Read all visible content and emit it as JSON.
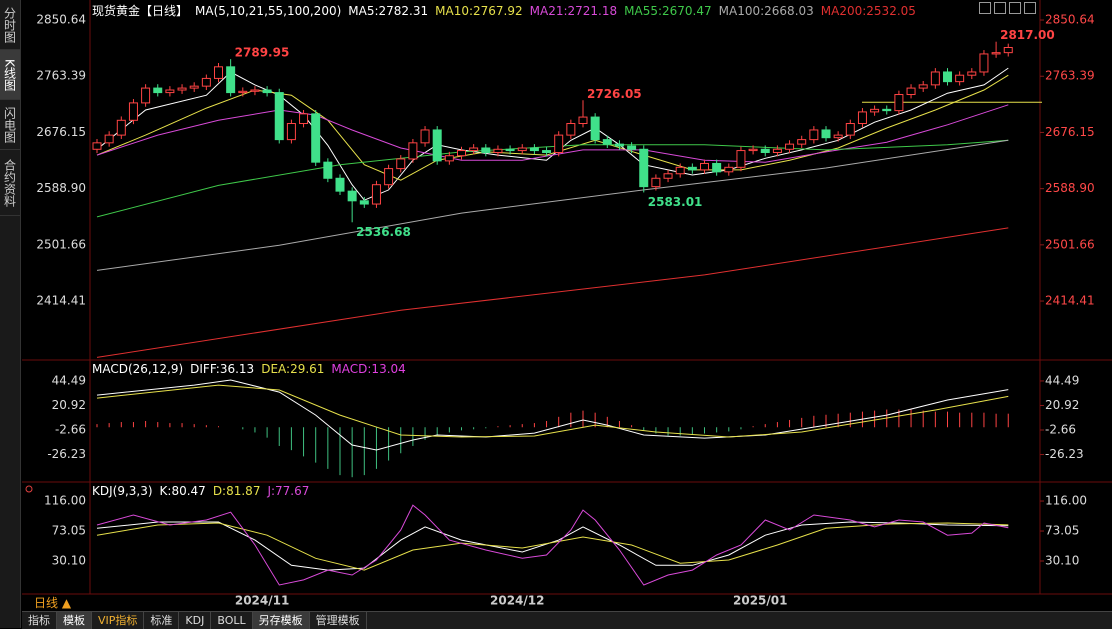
{
  "chart_data": [
    {
      "type": "candlestick",
      "title": "现货黄金【日线】",
      "indicator": "MA(5,10,21,55,100,200)",
      "up_color": "#ff4444",
      "down_color": "#40e08a",
      "categories": [
        null,
        null,
        null,
        null,
        null,
        null,
        null,
        null,
        null,
        null,
        null,
        null,
        null,
        null,
        "2024/11",
        null,
        null,
        null,
        null,
        null,
        null,
        null,
        null,
        null,
        null,
        null,
        null,
        null,
        null,
        null,
        null,
        null,
        null,
        null,
        null,
        "2024/12",
        null,
        null,
        null,
        null,
        null,
        null,
        null,
        null,
        null,
        null,
        null,
        null,
        null,
        null,
        null,
        null,
        null,
        null,
        null,
        "2025/01",
        null,
        null,
        null,
        null,
        null,
        null,
        null,
        null,
        null,
        null,
        null,
        null,
        null,
        null,
        null,
        null,
        null,
        null,
        null,
        null
      ],
      "open": [
        2650,
        2660,
        2672,
        2695,
        2722,
        2745,
        2738,
        2742,
        2745,
        2748,
        2760,
        2778,
        2738,
        2740,
        2742,
        2738,
        2665,
        2690,
        2705,
        2630,
        2605,
        2585,
        2570,
        2565,
        2595,
        2620,
        2635,
        2660,
        2680,
        2632,
        2640,
        2648,
        2652,
        2645,
        2650,
        2648,
        2652,
        2648,
        2645,
        2672,
        2690,
        2700,
        2665,
        2658,
        2655,
        2650,
        2592,
        2605,
        2612,
        2622,
        2618,
        2628,
        2615,
        2622,
        2648,
        2650,
        2645,
        2650,
        2658,
        2665,
        2680,
        2668,
        2672,
        2690,
        2708,
        2712,
        2710,
        2735,
        2745,
        2750,
        2770,
        2755,
        2765,
        2770,
        2798,
        2800
      ],
      "high": [
        2666,
        2678,
        2701,
        2728,
        2751,
        2751,
        2748,
        2751,
        2754,
        2766,
        2784,
        2789.95,
        2746,
        2748,
        2748,
        2744,
        2696,
        2711,
        2711,
        2636,
        2611,
        2591,
        2576,
        2601,
        2626,
        2641,
        2666,
        2686,
        2686,
        2646,
        2654,
        2658,
        2658,
        2656,
        2656,
        2658,
        2658,
        2654,
        2678,
        2696,
        2726.05,
        2706,
        2671,
        2664,
        2661,
        2656,
        2611,
        2618,
        2628,
        2628,
        2634,
        2634,
        2628,
        2654,
        2656,
        2656,
        2656,
        2664,
        2671,
        2686,
        2686,
        2678,
        2696,
        2714,
        2718,
        2718,
        2741,
        2751,
        2756,
        2776,
        2776,
        2771,
        2776,
        2804,
        2817,
        2814
      ],
      "low": [
        2644,
        2654,
        2666,
        2689,
        2716,
        2732,
        2732,
        2736,
        2739,
        2742,
        2754,
        2732,
        2732,
        2734,
        2732,
        2659,
        2659,
        2684,
        2624,
        2599,
        2579,
        2536.68,
        2559,
        2559,
        2589,
        2614,
        2629,
        2654,
        2626,
        2626,
        2634,
        2642,
        2639,
        2639,
        2642,
        2642,
        2642,
        2639,
        2639,
        2666,
        2684,
        2659,
        2652,
        2649,
        2644,
        2583.01,
        2586,
        2599,
        2606,
        2612,
        2612,
        2609,
        2609,
        2616,
        2642,
        2639,
        2639,
        2644,
        2652,
        2659,
        2662,
        2662,
        2666,
        2684,
        2702,
        2704,
        2704,
        2729,
        2739,
        2744,
        2749,
        2749,
        2759,
        2764,
        2792,
        2794
      ],
      "close": [
        2660,
        2672,
        2695,
        2722,
        2745,
        2738,
        2742,
        2745,
        2748,
        2760,
        2778,
        2738,
        2740,
        2742,
        2738,
        2665,
        2690,
        2705,
        2630,
        2605,
        2585,
        2570,
        2565,
        2595,
        2620,
        2635,
        2660,
        2680,
        2632,
        2640,
        2648,
        2652,
        2645,
        2650,
        2648,
        2652,
        2648,
        2645,
        2672,
        2690,
        2700,
        2665,
        2658,
        2655,
        2650,
        2592,
        2605,
        2612,
        2622,
        2618,
        2628,
        2615,
        2622,
        2648,
        2650,
        2645,
        2650,
        2658,
        2665,
        2680,
        2668,
        2672,
        2690,
        2708,
        2712,
        2710,
        2735,
        2745,
        2750,
        2770,
        2755,
        2765,
        2770,
        2798,
        2800,
        2808
      ],
      "high_labels": [
        null,
        null,
        null,
        null,
        null,
        null,
        null,
        null,
        null,
        null,
        null,
        "2789.95",
        null,
        null,
        null,
        null,
        null,
        null,
        null,
        null,
        null,
        null,
        null,
        null,
        null,
        null,
        null,
        null,
        null,
        null,
        null,
        null,
        null,
        null,
        null,
        null,
        null,
        null,
        null,
        null,
        "2726.05",
        null,
        null,
        null,
        null,
        null,
        null,
        null,
        null,
        null,
        null,
        null,
        null,
        null,
        null,
        null,
        null,
        null,
        null,
        null,
        null,
        null,
        null,
        null,
        null,
        null,
        null,
        null,
        null,
        null,
        null,
        null,
        null,
        null,
        "2817.00",
        null
      ],
      "low_labels": [
        null,
        null,
        null,
        null,
        null,
        null,
        null,
        null,
        null,
        null,
        null,
        null,
        null,
        null,
        null,
        null,
        null,
        null,
        null,
        null,
        null,
        "2536.68",
        null,
        null,
        null,
        null,
        null,
        null,
        null,
        null,
        null,
        null,
        null,
        null,
        null,
        null,
        null,
        null,
        null,
        null,
        null,
        null,
        null,
        null,
        null,
        "2583.01",
        null,
        null,
        null,
        null,
        null,
        null,
        null,
        null,
        null,
        null,
        null,
        null,
        null,
        null,
        null,
        null,
        null,
        null,
        null,
        null,
        null,
        null,
        null,
        null,
        null,
        null,
        null,
        null,
        null,
        null
      ],
      "horizontal_line": {
        "value": 2723,
        "color": "#e6e04b"
      },
      "series": [
        {
          "name": "MA5:2782.31",
          "color": "#ffffff",
          "x": [
            0,
            4,
            9,
            11,
            13,
            15,
            17,
            19,
            21,
            22,
            24,
            26,
            28,
            30,
            33,
            37,
            39,
            41,
            43,
            45,
            47,
            49,
            52,
            55,
            58,
            61,
            64,
            67,
            70,
            73,
            75
          ],
          "values": [
            2650,
            2711,
            2734,
            2770,
            2750,
            2734,
            2703,
            2656,
            2595,
            2571,
            2587,
            2633,
            2657,
            2649,
            2641,
            2633,
            2664,
            2683,
            2657,
            2626,
            2618,
            2610,
            2618,
            2636,
            2649,
            2664,
            2692,
            2711,
            2737,
            2750,
            2776
          ]
        },
        {
          "name": "MA10:2767.92",
          "color": "#e6e04b",
          "x": [
            0,
            4,
            9,
            13,
            16,
            19,
            22,
            25,
            28,
            32,
            37,
            41,
            45,
            49,
            53,
            57,
            61,
            65,
            69,
            73,
            75
          ],
          "values": [
            2641,
            2672,
            2714,
            2742,
            2734,
            2695,
            2626,
            2602,
            2633,
            2646,
            2641,
            2664,
            2641,
            2618,
            2618,
            2633,
            2652,
            2683,
            2711,
            2742,
            2765
          ]
        },
        {
          "name": "MA21:2721.18",
          "color": "#d84ad8",
          "x": [
            0,
            5,
            10,
            15,
            18,
            21,
            25,
            30,
            35,
            40,
            45,
            50,
            55,
            60,
            65,
            70,
            75
          ],
          "values": [
            2641,
            2672,
            2695,
            2711,
            2703,
            2680,
            2652,
            2633,
            2633,
            2649,
            2649,
            2633,
            2630,
            2646,
            2661,
            2688,
            2719
          ]
        },
        {
          "name": "MA55:2670.47",
          "color": "#3fc84a",
          "x": [
            0,
            10,
            20,
            30,
            40,
            50,
            60,
            70,
            75
          ],
          "values": [
            2545,
            2594,
            2626,
            2646,
            2657,
            2657,
            2649,
            2657,
            2664
          ]
        },
        {
          "name": "MA100:2668.03",
          "color": "#aaaaaa",
          "x": [
            0,
            15,
            30,
            45,
            60,
            75
          ],
          "values": [
            2462,
            2501,
            2551,
            2587,
            2621,
            2664
          ]
        },
        {
          "name": "MA200:2532.05",
          "color": "#e03030",
          "x": [
            0,
            25,
            50,
            75
          ],
          "values": [
            2327,
            2400,
            2455,
            2528
          ]
        }
      ],
      "ylim": [
        2326,
        2860
      ],
      "yticks": [
        2850.64,
        2763.39,
        2676.15,
        {
          "value": 2588.9,
          "label": "2588.90"
        },
        2501.66,
        2414.41
      ]
    },
    {
      "type": "macd",
      "title": "MACD(26,12,9)",
      "series": [
        {
          "name": "DIFF:36.13",
          "color": "#ffffff",
          "x": [
            0,
            8,
            11,
            15,
            18,
            21,
            23,
            26,
            28,
            32,
            36,
            40,
            42,
            45,
            50,
            55,
            60,
            65,
            70,
            75
          ],
          "values": [
            30.9,
            40.5,
            45.4,
            33.8,
            11.7,
            -17.1,
            -21.9,
            -12.3,
            -7.5,
            -9.4,
            -5.6,
            7,
            2.1,
            -7.5,
            -10.4,
            -7.5,
            2.1,
            11.7,
            26.2,
            36.13
          ]
        },
        {
          "name": "DEA:29.61",
          "color": "#e6e04b",
          "x": [
            0,
            10,
            15,
            20,
            25,
            30,
            36,
            41,
            46,
            52,
            58,
            63,
            69,
            75
          ],
          "values": [
            28,
            40.5,
            35.8,
            11.7,
            -7.5,
            -9.4,
            -8.4,
            2.1,
            -4.6,
            -9.4,
            -4.6,
            5,
            16.6,
            29.61
          ]
        }
      ],
      "histogram": {
        "name": "MACD:13.04",
        "color": "#e040e0",
        "up_color": "#ff4444",
        "down_color": "#3fc080",
        "values": [
          3,
          4,
          5,
          5,
          6,
          5,
          4,
          4,
          3,
          2,
          1,
          0,
          -2,
          -5,
          -10,
          -18,
          -22,
          -28,
          -34,
          -40,
          -46,
          -48,
          -46,
          -40,
          -32,
          -25,
          -18,
          -12,
          -8,
          -5,
          -3,
          -2,
          -1,
          1,
          2,
          3,
          4,
          6,
          10,
          14,
          16,
          14,
          10,
          6,
          2,
          -3,
          -6,
          -8,
          -8,
          -7,
          -6,
          -5,
          -4,
          -2,
          1,
          3,
          5,
          7,
          9,
          11,
          12,
          13,
          14,
          15,
          16,
          17,
          17,
          17,
          16,
          15,
          15,
          14,
          14,
          14,
          13,
          13.04
        ]
      },
      "ylim": [
        -50.7,
        62.7
      ],
      "yticks": [
        44.49,
        20.92,
        -2.66,
        -26.23
      ]
    },
    {
      "type": "line",
      "title": "KDJ(9,3,3)",
      "series": [
        {
          "name": "K:80.47",
          "color": "#ffffff",
          "x": [
            0,
            5,
            10,
            13,
            16,
            19,
            22,
            25,
            27,
            30,
            35,
            38,
            40,
            43,
            46,
            49,
            52,
            55,
            58,
            62,
            66,
            70,
            75
          ],
          "values": [
            77,
            86,
            86,
            60,
            24,
            17,
            20,
            60,
            79,
            60,
            43,
            60,
            79,
            53,
            24,
            24,
            38.7,
            67,
            81.6,
            86,
            84.5,
            81.6,
            80.47
          ]
        },
        {
          "name": "D:81.87",
          "color": "#e6e04b",
          "x": [
            0,
            5,
            10,
            14,
            18,
            22,
            26,
            30,
            35,
            40,
            44,
            48,
            52,
            56,
            60,
            65,
            70,
            75
          ],
          "values": [
            67,
            81.6,
            84.5,
            67,
            34,
            17,
            45.8,
            55.8,
            48.7,
            64.5,
            53,
            27,
            31.5,
            53,
            77,
            83,
            84.5,
            81.87
          ]
        },
        {
          "name": "J:77.67",
          "color": "#d84ad8",
          "x": [
            0,
            3,
            6,
            9,
            11,
            13,
            15,
            17,
            19,
            21,
            23,
            25,
            26,
            27,
            29,
            32,
            35,
            37,
            39,
            40,
            41,
            43,
            45,
            47,
            49,
            51,
            53,
            55,
            57,
            59,
            62,
            64,
            66,
            68,
            70,
            72,
            73,
            75
          ],
          "values": [
            81.6,
            96,
            81.6,
            88.8,
            100,
            53,
            -4.3,
            3,
            17,
            10,
            31.5,
            74.5,
            110,
            96,
            60,
            45.8,
            34,
            38.7,
            74.5,
            103,
            88.8,
            45.8,
            -4.3,
            10,
            17,
            38.7,
            53,
            88.8,
            74.5,
            96,
            88.8,
            79,
            88.8,
            86,
            67,
            70,
            84.5,
            77.67
          ]
        }
      ],
      "ylim": [
        -14.3,
        140.4
      ],
      "yticks": [
        {
          "value": 116,
          "label": "116.00"
        },
        73.05,
        {
          "value": 30.1,
          "label": "30.10"
        }
      ]
    }
  ],
  "period": "日线",
  "sidebar": [
    "分时图",
    "K线图",
    "闪电图",
    "合约资料"
  ],
  "toolbar": [
    "指标",
    "模板",
    "VIP指标",
    "标准",
    "KDJ",
    "BOLL",
    "另存模板",
    "管理模板"
  ]
}
